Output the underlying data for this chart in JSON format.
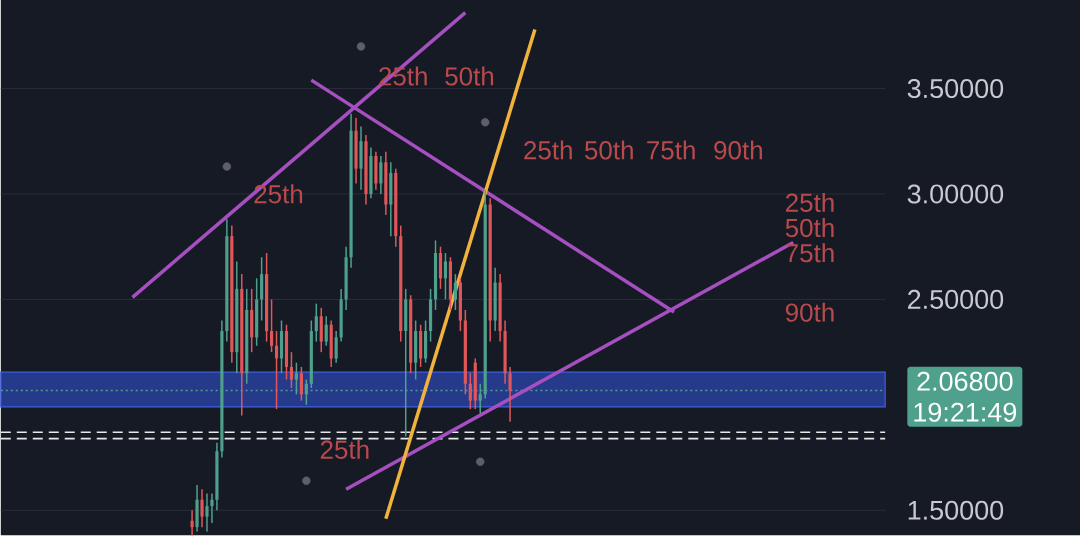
{
  "chart_data": {
    "type": "candlestick",
    "categories": [
      null,
      null,
      null,
      null,
      null,
      null,
      null,
      null,
      null,
      null,
      null,
      null,
      null,
      null,
      null,
      null,
      null,
      null,
      null,
      null,
      null,
      null,
      null,
      null,
      null,
      null,
      null,
      null,
      null,
      null,
      null,
      null,
      null,
      null,
      null,
      null,
      null,
      null,
      null,
      null,
      null,
      null,
      null,
      null,
      null,
      null,
      null,
      null,
      null,
      null,
      null,
      null,
      null,
      null,
      null,
      null,
      null,
      null,
      null,
      null,
      null,
      null,
      null,
      null,
      null,
      null,
      null,
      null,
      null,
      null,
      null,
      null,
      null,
      null,
      null,
      null,
      null,
      null,
      null,
      null,
      null,
      null,
      null,
      null,
      null,
      null,
      null,
      null,
      null,
      null,
      null,
      null,
      null,
      null,
      null,
      null,
      null,
      null,
      null,
      null,
      null,
      null,
      null,
      null,
      null,
      null,
      null,
      null,
      null,
      null,
      null,
      null,
      null,
      null,
      null,
      null,
      null,
      null,
      null,
      null,
      null,
      null,
      null,
      null,
      null,
      null,
      null,
      null,
      null,
      null,
      null,
      null,
      null,
      null,
      null,
      null,
      null,
      null,
      null,
      null,
      null,
      null,
      null,
      null,
      null,
      null,
      null,
      null,
      null,
      null,
      null,
      null,
      null,
      null,
      null,
      null,
      null,
      null,
      null,
      null,
      null,
      null,
      null,
      null,
      null,
      null,
      null,
      null,
      null,
      null,
      null,
      null,
      null,
      null,
      null,
      null,
      null,
      null
    ],
    "ohlc": [
      null,
      null,
      null,
      null,
      null,
      null,
      null,
      null,
      null,
      null,
      null,
      null,
      null,
      null,
      null,
      null,
      null,
      null,
      null,
      null,
      null,
      null,
      null,
      null,
      null,
      null,
      null,
      null,
      null,
      null,
      null,
      null,
      null,
      null,
      null,
      null,
      null,
      null,
      [
        1.45,
        1.5,
        1.38,
        1.42
      ],
      [
        1.42,
        1.62,
        1.4,
        1.55
      ],
      [
        1.55,
        1.6,
        1.42,
        1.47
      ],
      [
        1.47,
        1.58,
        1.4,
        1.52
      ],
      [
        1.52,
        1.58,
        1.44,
        1.55
      ],
      [
        1.55,
        1.82,
        1.5,
        1.78
      ],
      [
        1.78,
        2.4,
        1.75,
        2.35
      ],
      [
        2.35,
        2.88,
        2.3,
        2.8
      ],
      [
        2.8,
        2.85,
        2.2,
        2.25
      ],
      [
        2.25,
        2.68,
        2.15,
        2.55
      ],
      [
        2.55,
        2.62,
        1.95,
        2.15
      ],
      [
        2.15,
        2.55,
        2.1,
        2.45
      ],
      [
        2.45,
        2.55,
        2.25,
        2.32
      ],
      [
        2.32,
        2.6,
        2.28,
        2.5
      ],
      [
        2.5,
        2.7,
        2.4,
        2.62
      ],
      [
        2.62,
        2.72,
        2.3,
        2.35
      ],
      [
        2.35,
        2.5,
        2.25,
        2.28
      ],
      [
        2.28,
        2.35,
        1.98,
        2.22
      ],
      [
        2.22,
        2.4,
        2.15,
        2.35
      ],
      [
        2.35,
        2.38,
        2.12,
        2.18
      ],
      [
        2.18,
        2.25,
        2.08,
        2.12
      ],
      [
        2.12,
        2.2,
        2.05,
        2.15
      ],
      [
        2.15,
        2.18,
        2.02,
        2.05
      ],
      [
        2.05,
        2.12,
        2.0,
        2.1
      ],
      [
        2.1,
        2.4,
        2.08,
        2.35
      ],
      [
        2.35,
        2.48,
        2.3,
        2.42
      ],
      [
        2.42,
        2.46,
        2.25,
        2.3
      ],
      [
        2.3,
        2.42,
        2.28,
        2.38
      ],
      [
        2.38,
        2.4,
        2.18,
        2.22
      ],
      [
        2.22,
        2.35,
        2.2,
        2.32
      ],
      [
        2.32,
        2.55,
        2.3,
        2.5
      ],
      [
        2.5,
        2.75,
        2.45,
        2.7
      ],
      [
        2.7,
        3.38,
        2.65,
        3.3
      ],
      [
        3.3,
        3.36,
        3.05,
        3.12
      ],
      [
        3.12,
        3.32,
        3.02,
        3.25
      ],
      [
        3.25,
        3.28,
        2.95,
        3.0
      ],
      [
        3.0,
        3.22,
        2.98,
        3.18
      ],
      [
        3.18,
        3.2,
        3.02,
        3.05
      ],
      [
        3.05,
        3.18,
        3.0,
        3.15
      ],
      [
        3.15,
        3.2,
        2.9,
        2.95
      ],
      [
        2.95,
        3.15,
        2.8,
        3.1
      ],
      [
        3.1,
        3.12,
        2.75,
        2.8
      ],
      [
        2.8,
        2.85,
        2.3,
        2.35
      ],
      [
        2.35,
        2.55,
        1.85,
        2.5
      ],
      [
        2.5,
        2.52,
        2.15,
        2.2
      ],
      [
        2.2,
        2.4,
        2.12,
        2.35
      ],
      [
        2.35,
        2.38,
        2.18,
        2.22
      ],
      [
        2.22,
        2.4,
        2.2,
        2.35
      ],
      [
        2.35,
        2.55,
        2.3,
        2.5
      ],
      [
        2.5,
        2.78,
        2.45,
        2.72
      ],
      [
        2.72,
        2.75,
        2.55,
        2.6
      ],
      [
        2.6,
        2.72,
        2.5,
        2.68
      ],
      [
        2.68,
        2.7,
        2.45,
        2.5
      ],
      [
        2.5,
        2.62,
        2.45,
        2.58
      ],
      [
        2.58,
        2.6,
        2.35,
        2.4
      ],
      [
        2.4,
        2.45,
        2.05,
        2.1
      ],
      [
        2.1,
        2.15,
        1.98,
        2.02
      ],
      [
        2.2,
        2.22,
        1.98,
        2.02
      ],
      [
        2.02,
        2.1,
        1.96,
        2.05
      ],
      [
        2.05,
        3.02,
        2.03,
        2.95
      ],
      [
        2.95,
        2.98,
        2.3,
        2.4
      ],
      [
        2.4,
        2.65,
        2.35,
        2.58
      ],
      [
        2.58,
        2.62,
        2.3,
        2.35
      ],
      [
        2.35,
        2.4,
        2.1,
        2.15
      ],
      [
        2.15,
        2.18,
        1.92,
        2.068
      ],
      null,
      null,
      null,
      null,
      null,
      null,
      null,
      null,
      null,
      null,
      null,
      null,
      null,
      null,
      null,
      null,
      null,
      null,
      null,
      null,
      null,
      null,
      null,
      null,
      null,
      null,
      null,
      null,
      null,
      null,
      null,
      null,
      null,
      null,
      null,
      null,
      null,
      null,
      null,
      null,
      null,
      null,
      null,
      null,
      null,
      null,
      null,
      null,
      null,
      null,
      null,
      null,
      null,
      null,
      null,
      null,
      null,
      null,
      null,
      null,
      null,
      null,
      null,
      null,
      null,
      null,
      null,
      null,
      null,
      null,
      null,
      null,
      null,
      null,
      null
    ],
    "colors": [
      null,
      null,
      null,
      null,
      null,
      null,
      null,
      null,
      null,
      null,
      null,
      null,
      null,
      null,
      null,
      null,
      null,
      null,
      null,
      null,
      null,
      null,
      null,
      null,
      null,
      null,
      null,
      null,
      null,
      null,
      null,
      null,
      null,
      null,
      null,
      null,
      null,
      null,
      "#e0575a",
      "#4fa08c",
      "#e0575a",
      "#4fa08c",
      "#4fa08c",
      "#4fa08c",
      "#4fa08c",
      "#4fa08c",
      "#e0575a",
      "#4fa08c",
      "#e0575a",
      "#4fa08c",
      "#e0575a",
      "#4fa08c",
      "#4fa08c",
      "#e0575a",
      "#e0575a",
      "#e0575a",
      "#4fa08c",
      "#e0575a",
      "#e0575a",
      "#4fa08c",
      "#e0575a",
      "#4fa08c",
      "#4fa08c",
      "#4fa08c",
      "#e0575a",
      "#4fa08c",
      "#e0575a",
      "#4fa08c",
      "#4fa08c",
      "#4fa08c",
      "#4fa08c",
      "#e0575a",
      "#4fa08c",
      "#e0575a",
      "#4fa08c",
      "#e0575a",
      "#4fa08c",
      "#e0575a",
      "#4fa08c",
      "#e0575a",
      "#e0575a",
      "#4fa08c",
      "#e0575a",
      "#4fa08c",
      "#e0575a",
      "#4fa08c",
      "#4fa08c",
      "#4fa08c",
      "#e0575a",
      "#4fa08c",
      "#e0575a",
      "#4fa08c",
      "#e0575a",
      "#e0575a",
      "#e0575a",
      "#e0575a",
      "#4fa08c",
      "#4fa08c",
      "#e0575a",
      "#4fa08c",
      "#e0575a",
      "#e0575a",
      "#e0575a",
      null,
      null,
      null,
      null,
      null,
      null,
      null,
      null,
      null,
      null,
      null,
      null,
      null,
      null,
      null,
      null,
      null,
      null,
      null,
      null,
      null,
      null,
      null,
      null,
      null,
      null,
      null,
      null,
      null,
      null,
      null,
      null,
      null,
      null,
      null,
      null,
      null,
      null,
      null,
      null,
      null,
      null,
      null,
      null,
      null,
      null,
      null,
      null,
      null,
      null,
      null,
      null,
      null,
      null,
      null,
      null,
      null,
      null,
      null,
      null,
      null,
      null,
      null,
      null,
      null,
      null,
      null,
      null,
      null,
      null,
      null,
      null,
      null,
      null,
      null
    ],
    "series": [
      {
        "type": "line",
        "color": "#a64fc0",
        "values": [
          null,
          null,
          null,
          null,
          null,
          null,
          null,
          null,
          null,
          null,
          null,
          null,
          null,
          null,
          null,
          null,
          null,
          null,
          null,
          null,
          null,
          null,
          null,
          null,
          null,
          null,
          2.51,
          null,
          null,
          null,
          null,
          null,
          null,
          null,
          null,
          null,
          null,
          null,
          null,
          null,
          null,
          null,
          null,
          null,
          null,
          null,
          null,
          null,
          null,
          null,
          null,
          null,
          null,
          null,
          null,
          null,
          null,
          null,
          null,
          null,
          null,
          null,
          null,
          null,
          null,
          null,
          null,
          null,
          null,
          null,
          null,
          null,
          null,
          null,
          null,
          null,
          null,
          null,
          null,
          null,
          null,
          null,
          null,
          null,
          null,
          null,
          null,
          null,
          null,
          null,
          null,
          null,
          null,
          3.86,
          null,
          null,
          null,
          null,
          null,
          null,
          null,
          null,
          null,
          null,
          null,
          null,
          null,
          null,
          null,
          null,
          null,
          null,
          null,
          null,
          null,
          null,
          null,
          null,
          null,
          null,
          null,
          null,
          null,
          null,
          null,
          null,
          null,
          null,
          null,
          null,
          null,
          null,
          null,
          null,
          null,
          null,
          null,
          null,
          null,
          null,
          null,
          null,
          null,
          null,
          null,
          null,
          null,
          null,
          null,
          null,
          null,
          null,
          null,
          null,
          null,
          null,
          null,
          null,
          null,
          null,
          null,
          null,
          null,
          null,
          null,
          null,
          null,
          null,
          null,
          null,
          null,
          null,
          null,
          null,
          null,
          null,
          null,
          null
        ]
      },
      {
        "type": "line",
        "color": "#a64fc0",
        "values": [
          null,
          null,
          null,
          null,
          null,
          null,
          null,
          null,
          null,
          null,
          null,
          null,
          null,
          null,
          null,
          null,
          null,
          null,
          null,
          null,
          null,
          null,
          null,
          null,
          null,
          null,
          null,
          null,
          null,
          null,
          null,
          null,
          null,
          null,
          null,
          null,
          null,
          null,
          null,
          null,
          null,
          null,
          null,
          null,
          null,
          null,
          null,
          null,
          null,
          null,
          null,
          null,
          null,
          null,
          null,
          null,
          null,
          null,
          null,
          null,
          null,
          null,
          3.54,
          null,
          null,
          null,
          null,
          null,
          null,
          null,
          null,
          null,
          null,
          null,
          null,
          null,
          null,
          null,
          null,
          null,
          null,
          null,
          null,
          null,
          null,
          null,
          null,
          null,
          null,
          null,
          null,
          null,
          null,
          null,
          null,
          null,
          null,
          null,
          null,
          null,
          null,
          null,
          null,
          null,
          null,
          null,
          null,
          null,
          null,
          null,
          null,
          null,
          null,
          null,
          null,
          null,
          null,
          null,
          null,
          null,
          null,
          null,
          null,
          null,
          null,
          null,
          null,
          null,
          null,
          null,
          null,
          null,
          null,
          null,
          null,
          2.44,
          null,
          null,
          null,
          null,
          null,
          null,
          null,
          null,
          null,
          null,
          null,
          null,
          null,
          null,
          null,
          null,
          null,
          null,
          null,
          null,
          null,
          null,
          null,
          null,
          null,
          null,
          null,
          null,
          null,
          null,
          null,
          null,
          null,
          null,
          null,
          null,
          null,
          null,
          null,
          null,
          null,
          null
        ]
      },
      {
        "type": "line",
        "color": "#a64fc0",
        "values": [
          null,
          null,
          null,
          null,
          null,
          null,
          null,
          null,
          null,
          null,
          null,
          null,
          null,
          null,
          null,
          null,
          null,
          null,
          null,
          null,
          null,
          null,
          null,
          null,
          null,
          null,
          null,
          null,
          null,
          null,
          null,
          null,
          null,
          null,
          null,
          null,
          null,
          null,
          null,
          null,
          null,
          null,
          null,
          null,
          null,
          null,
          null,
          null,
          null,
          null,
          null,
          null,
          null,
          null,
          null,
          null,
          null,
          null,
          null,
          null,
          null,
          null,
          null,
          null,
          null,
          null,
          null,
          null,
          null,
          1.6,
          null,
          null,
          null,
          null,
          null,
          null,
          null,
          null,
          null,
          null,
          null,
          null,
          null,
          null,
          null,
          null,
          null,
          null,
          null,
          null,
          null,
          null,
          null,
          null,
          null,
          null,
          null,
          null,
          null,
          null,
          null,
          null,
          null,
          null,
          null,
          null,
          null,
          null,
          null,
          null,
          null,
          null,
          null,
          null,
          null,
          null,
          null,
          null,
          null,
          null,
          null,
          null,
          null,
          null,
          null,
          null,
          null,
          null,
          null,
          null,
          null,
          null,
          null,
          null,
          null,
          null,
          null,
          null,
          null,
          null,
          null,
          null,
          null,
          null,
          null,
          null,
          null,
          null,
          null,
          null,
          null,
          null,
          null,
          null,
          null,
          null,
          null,
          null,
          null,
          2.77,
          null,
          null,
          null,
          null,
          null,
          null,
          null,
          null,
          null,
          null,
          null,
          null,
          null,
          null,
          null,
          null,
          null,
          null
        ]
      },
      {
        "type": "line",
        "color": "#f2b33d",
        "values": [
          null,
          null,
          null,
          null,
          null,
          null,
          null,
          null,
          null,
          null,
          null,
          null,
          null,
          null,
          null,
          null,
          null,
          null,
          null,
          null,
          null,
          null,
          null,
          null,
          null,
          null,
          null,
          null,
          null,
          null,
          null,
          null,
          null,
          null,
          null,
          null,
          null,
          null,
          null,
          null,
          null,
          null,
          null,
          null,
          null,
          null,
          null,
          null,
          null,
          null,
          null,
          null,
          null,
          null,
          null,
          null,
          null,
          null,
          null,
          null,
          null,
          null,
          null,
          null,
          null,
          null,
          null,
          null,
          null,
          null,
          null,
          null,
          null,
          null,
          null,
          null,
          null,
          1.46,
          null,
          null,
          null,
          null,
          null,
          null,
          null,
          null,
          null,
          null,
          null,
          null,
          null,
          null,
          null,
          null,
          null,
          null,
          null,
          null,
          null,
          null,
          null,
          null,
          null,
          null,
          null,
          null,
          null,
          3.78,
          null,
          null,
          null,
          null,
          null,
          null,
          null,
          null,
          null,
          null,
          null,
          null,
          null,
          null,
          null,
          null,
          null,
          null,
          null,
          null,
          null,
          null,
          null,
          null,
          null,
          null,
          null,
          null,
          null,
          null,
          null,
          null,
          null,
          null,
          null,
          null,
          null,
          null,
          null,
          null,
          null,
          null,
          null,
          null,
          null,
          null,
          null,
          null,
          null,
          null,
          null,
          null,
          null,
          null,
          null,
          null,
          null,
          null,
          null,
          null,
          null,
          null,
          null,
          null,
          null,
          null,
          null,
          null,
          null,
          null
        ]
      },
      {
        "type": "scatter",
        "color": "#5d606b",
        "marker": "circle",
        "values": [
          null,
          null,
          null,
          null,
          null,
          null,
          null,
          null,
          null,
          null,
          null,
          null,
          null,
          null,
          null,
          null,
          null,
          null,
          null,
          null,
          null,
          null,
          null,
          null,
          null,
          null,
          null,
          null,
          null,
          null,
          null,
          null,
          null,
          null,
          null,
          null,
          null,
          null,
          null,
          null,
          null,
          null,
          null,
          null,
          null,
          3.13,
          null,
          null,
          null,
          null,
          null,
          null,
          null,
          null,
          null,
          null,
          null,
          null,
          null,
          null,
          null,
          1.64,
          null,
          null,
          null,
          null,
          null,
          null,
          null,
          null,
          null,
          null,
          3.7,
          null,
          null,
          null,
          null,
          null,
          null,
          null,
          null,
          null,
          null,
          null,
          null,
          null,
          null,
          null,
          null,
          null,
          null,
          null,
          null,
          null,
          null,
          null,
          1.73,
          3.34,
          null,
          null,
          null,
          null,
          null,
          null,
          null,
          null,
          null,
          null,
          null,
          null,
          null,
          null,
          null,
          null,
          null,
          null,
          null,
          null,
          null,
          null,
          null,
          null,
          null,
          null,
          null,
          null,
          null,
          null,
          null,
          null,
          null,
          null,
          null,
          null,
          null,
          null,
          null,
          null,
          null,
          null,
          null,
          null,
          null,
          null,
          null,
          null,
          null,
          null,
          null,
          null,
          null,
          null,
          null,
          null,
          null,
          null,
          null,
          null,
          null,
          null,
          null,
          null,
          null,
          null,
          null,
          null,
          null,
          null,
          null,
          null,
          null,
          null,
          null,
          null,
          null,
          null,
          null,
          null
        ]
      }
    ],
    "ylim": [
      1.38,
      3.92
    ],
    "yticks": [
      {
        "value": 3.5,
        "label": "3.50000"
      },
      {
        "value": 3.0,
        "label": "3.00000"
      },
      {
        "value": 2.5,
        "label": "2.50000"
      },
      {
        "value": 2.0,
        "label": null
      },
      {
        "value": 1.5,
        "label": "1.50000"
      }
    ],
    "tick_labels": "y",
    "grid": "y",
    "bands": [
      {
        "axis": "y",
        "from": 1.99,
        "to": 2.155,
        "color": "#263a8c"
      }
    ],
    "ref_lines": [
      {
        "axis": "y",
        "value": 1.87,
        "color": "#e8e8e8",
        "line_style": "dashed"
      },
      {
        "axis": "y",
        "value": 1.84,
        "color": "#e8e8e8",
        "line_style": "dashed"
      },
      {
        "axis": "y",
        "value": 2.068,
        "color": "#4fa08c",
        "line_style": "dotted",
        "label": "2.06800"
      }
    ],
    "annotations": [
      "19:21:49",
      "25th",
      "25th",
      "50th",
      "25th",
      "50th",
      "75th",
      "90th",
      "25th",
      "50th",
      "75th",
      "90th",
      "25th"
    ]
  }
}
